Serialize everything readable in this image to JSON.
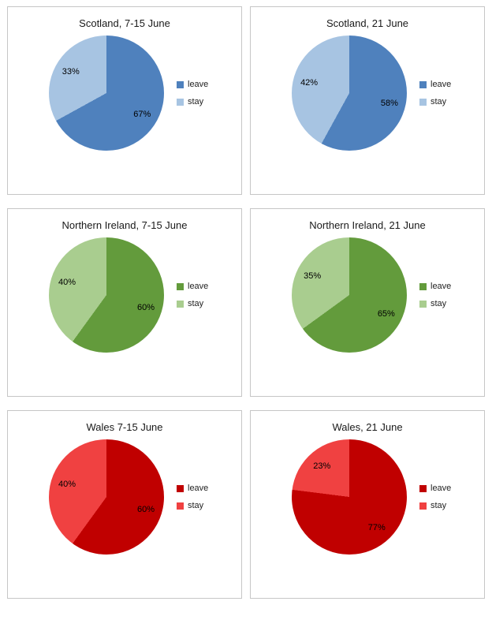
{
  "page": {
    "background": "#ffffff",
    "panel_border": "#c6c6c6"
  },
  "chart_data": [
    {
      "type": "pie",
      "title": "Scotland, 7-15 June",
      "legend_position": "right",
      "start_angle_deg": 0,
      "direction": "clockwise",
      "slices": [
        {
          "name": "leave",
          "value": 67,
          "label": "67%",
          "color": "#4f81bd"
        },
        {
          "name": "stay",
          "value": 33,
          "label": "33%",
          "color": "#a7c4e2"
        }
      ]
    },
    {
      "type": "pie",
      "title": "Scotland, 21 June",
      "legend_position": "right",
      "start_angle_deg": 0,
      "direction": "clockwise",
      "slices": [
        {
          "name": "leave",
          "value": 58,
          "label": "58%",
          "color": "#4f81bd"
        },
        {
          "name": "stay",
          "value": 42,
          "label": "42%",
          "color": "#a7c4e2"
        }
      ]
    },
    {
      "type": "pie",
      "title": "Northern Ireland, 7-15 June",
      "legend_position": "right",
      "start_angle_deg": 0,
      "direction": "clockwise",
      "slices": [
        {
          "name": "leave",
          "value": 60,
          "label": "60%",
          "color": "#639b3c"
        },
        {
          "name": "stay",
          "value": 40,
          "label": "40%",
          "color": "#a9cd8f"
        }
      ]
    },
    {
      "type": "pie",
      "title": "Northern Ireland, 21 June",
      "legend_position": "right",
      "start_angle_deg": 0,
      "direction": "clockwise",
      "slices": [
        {
          "name": "leave",
          "value": 65,
          "label": "65%",
          "color": "#639b3c"
        },
        {
          "name": "stay",
          "value": 35,
          "label": "35%",
          "color": "#a9cd8f"
        }
      ]
    },
    {
      "type": "pie",
      "title": "Wales 7-15 June",
      "legend_position": "right",
      "start_angle_deg": 0,
      "direction": "clockwise",
      "slices": [
        {
          "name": "leave",
          "value": 60,
          "label": "60%",
          "color": "#c00000"
        },
        {
          "name": "stay",
          "value": 40,
          "label": "40%",
          "color": "#f04141"
        }
      ]
    },
    {
      "type": "pie",
      "title": "Wales, 21 June",
      "legend_position": "right",
      "start_angle_deg": 0,
      "direction": "clockwise",
      "slices": [
        {
          "name": "leave",
          "value": 77,
          "label": "77%",
          "color": "#c00000"
        },
        {
          "name": "stay",
          "value": 23,
          "label": "23%",
          "color": "#f04141"
        }
      ]
    }
  ]
}
